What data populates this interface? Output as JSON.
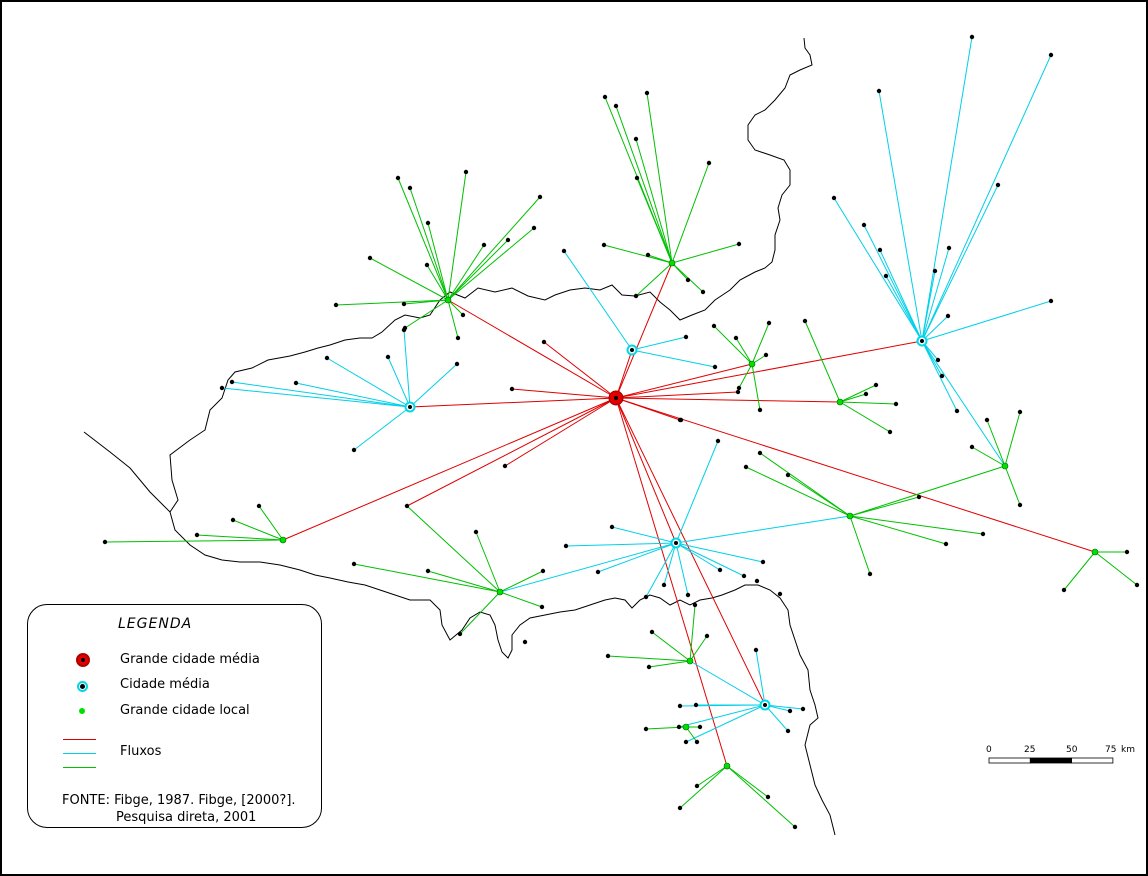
{
  "legend": {
    "title": "LEGENDA",
    "items": [
      {
        "label": "Grande cidade média",
        "symbol": "red-ring",
        "color": "#e00000"
      },
      {
        "label": "Cidade média",
        "symbol": "cyan-ring",
        "color": "#00d8e8"
      },
      {
        "label": "Grande cidade local",
        "symbol": "green-dot",
        "color": "#00e000"
      }
    ],
    "flows_label": "Fluxos",
    "flow_colors": [
      "#e00000",
      "#00d0e8",
      "#00c000"
    ]
  },
  "source": {
    "line1": "FONTE: Fibge, 1987. Fibge, [2000?].",
    "line2": "Pesquisa direta, 2001"
  },
  "scale": {
    "ticks": [
      "0",
      "25",
      "50",
      "75"
    ],
    "unit": "km"
  }
}
